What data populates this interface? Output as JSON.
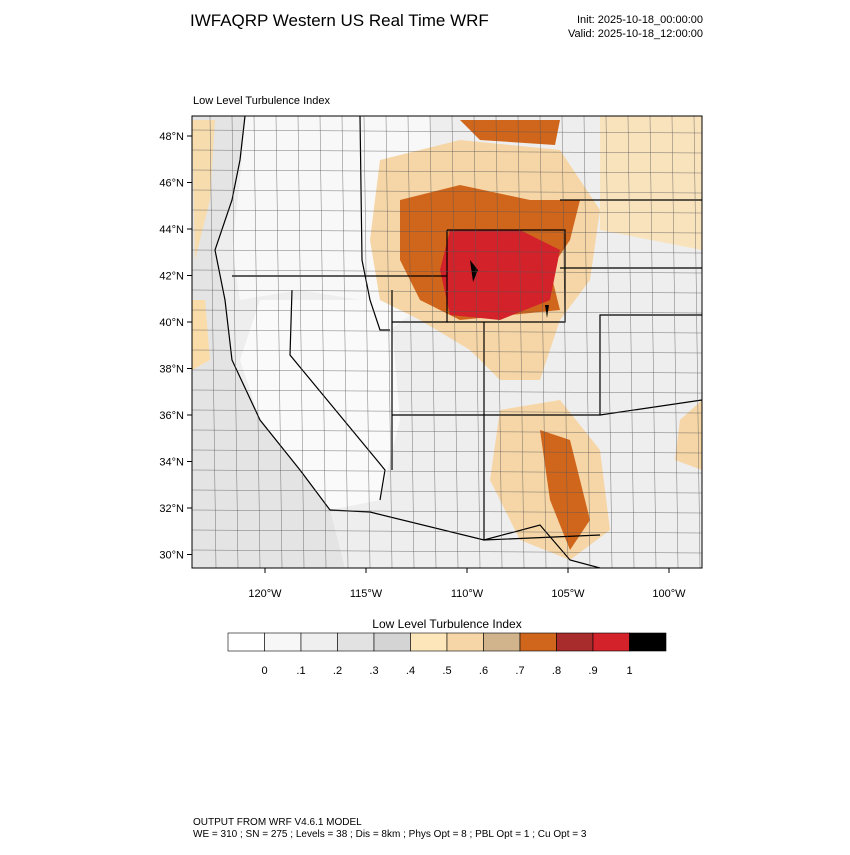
{
  "header": {
    "title": "IWFAQRP Western US Real Time WRF",
    "init": "Init: 2025-10-18_00:00:00",
    "valid": "Valid: 2025-10-18_12:00:00"
  },
  "map": {
    "subtitle": "Low Level Turbulence Index",
    "lat_labels": [
      "48°N",
      "46°N",
      "44°N",
      "42°N",
      "40°N",
      "38°N",
      "36°N",
      "34°N",
      "32°N",
      "30°N"
    ],
    "lon_labels": [
      "120°W",
      "115°W",
      "110°W",
      "105°W",
      "100°W"
    ]
  },
  "colorbar": {
    "title": "Low Level Turbulence Index",
    "colors": [
      "#ffffff",
      "#f7f7f7",
      "#efefef",
      "#e2e2e2",
      "#d4d4d4",
      "#fde7ba",
      "#f6d6a6",
      "#d1b48c",
      "#d0661c",
      "#a82c2c",
      "#d3222a",
      "#000000"
    ],
    "labels": [
      "0",
      ".1",
      ".2",
      ".3",
      ".4",
      ".5",
      ".6",
      ".7",
      ".8",
      ".9",
      "1"
    ]
  },
  "footer": {
    "line1": "OUTPUT FROM WRF V4.6.1 MODEL",
    "line2": "WE = 310 ; SN = 275 ; Levels = 38 ; Dis = 8km ; Phys Opt = 8 ; PBL Opt = 1 ; Cu Opt = 3"
  }
}
